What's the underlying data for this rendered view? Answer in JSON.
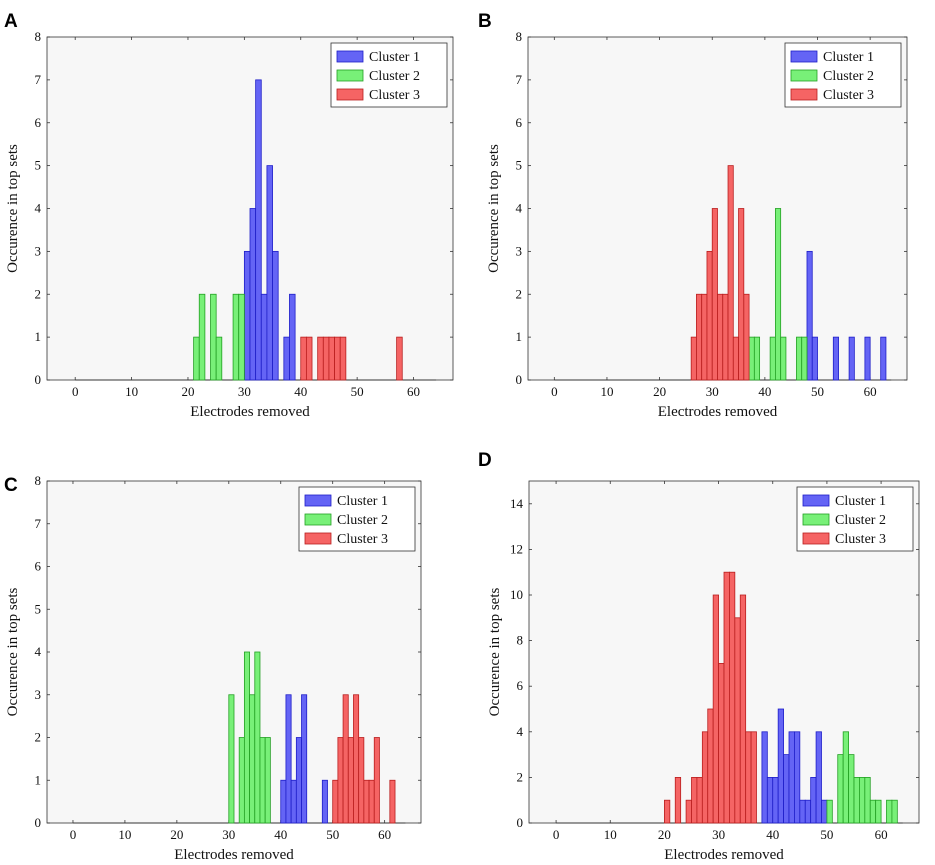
{
  "colors": {
    "plot_bg": "#f7f7f7",
    "Cluster 1": {
      "fill": "#6464f5",
      "stroke": "#1e1ec8"
    },
    "Cluster 2": {
      "fill": "#78f078",
      "stroke": "#23a023"
    },
    "Cluster 3": {
      "fill": "#f56464",
      "stroke": "#b91e1e"
    }
  },
  "chart_data": [
    {
      "panel": "A",
      "type": "bar",
      "xlabel": "Electrodes removed",
      "ylabel": "Occurence in top sets",
      "xlim": [
        -5,
        67
      ],
      "ylim": [
        0,
        8
      ],
      "xticks": [
        0,
        10,
        20,
        30,
        40,
        50,
        60
      ],
      "yticks": [
        0,
        1,
        2,
        3,
        4,
        5,
        6,
        7,
        8
      ],
      "legend_position": "top-right",
      "series": [
        {
          "name": "Cluster 1",
          "points": [
            [
              31,
              3
            ],
            [
              32,
              4
            ],
            [
              33,
              7
            ],
            [
              34,
              2
            ],
            [
              35,
              5
            ],
            [
              36,
              3
            ],
            [
              38,
              1
            ],
            [
              39,
              2
            ]
          ]
        },
        {
          "name": "Cluster 2",
          "points": [
            [
              22,
              1
            ],
            [
              23,
              2
            ],
            [
              25,
              2
            ],
            [
              26,
              1
            ],
            [
              29,
              2
            ],
            [
              30,
              2
            ]
          ]
        },
        {
          "name": "Cluster 3",
          "points": [
            [
              41,
              1
            ],
            [
              42,
              1
            ],
            [
              44,
              1
            ],
            [
              45,
              1
            ],
            [
              46,
              1
            ],
            [
              47,
              1
            ],
            [
              48,
              1
            ],
            [
              58,
              1
            ]
          ]
        }
      ]
    },
    {
      "panel": "B",
      "type": "bar",
      "xlabel": "Electrodes removed",
      "ylabel": "Occurence in top sets",
      "xlim": [
        -5,
        67
      ],
      "ylim": [
        0,
        8
      ],
      "xticks": [
        0,
        10,
        20,
        30,
        40,
        50,
        60
      ],
      "yticks": [
        0,
        1,
        2,
        3,
        4,
        5,
        6,
        7,
        8
      ],
      "legend_position": "top-right",
      "series": [
        {
          "name": "Cluster 1",
          "points": [
            [
              49,
              3
            ],
            [
              50,
              1
            ],
            [
              54,
              1
            ],
            [
              57,
              1
            ],
            [
              60,
              1
            ],
            [
              63,
              1
            ]
          ]
        },
        {
          "name": "Cluster 2",
          "points": [
            [
              38,
              1
            ],
            [
              39,
              1
            ],
            [
              42,
              1
            ],
            [
              43,
              4
            ],
            [
              44,
              1
            ],
            [
              47,
              1
            ],
            [
              48,
              1
            ]
          ]
        },
        {
          "name": "Cluster 3",
          "points": [
            [
              27,
              1
            ],
            [
              28,
              2
            ],
            [
              29,
              2
            ],
            [
              30,
              3
            ],
            [
              31,
              4
            ],
            [
              32,
              2
            ],
            [
              33,
              2
            ],
            [
              34,
              5
            ],
            [
              35,
              1
            ],
            [
              36,
              4
            ],
            [
              37,
              2
            ]
          ]
        }
      ]
    },
    {
      "panel": "C",
      "type": "bar",
      "xlabel": "Electrodes removed",
      "ylabel": "Occurence in top sets",
      "xlim": [
        -5,
        67
      ],
      "ylim": [
        0,
        8
      ],
      "xticks": [
        0,
        10,
        20,
        30,
        40,
        50,
        60
      ],
      "yticks": [
        0,
        1,
        2,
        3,
        4,
        5,
        6,
        7,
        8
      ],
      "legend_position": "top-right",
      "series": [
        {
          "name": "Cluster 1",
          "points": [
            [
              41,
              1
            ],
            [
              42,
              3
            ],
            [
              43,
              1
            ],
            [
              44,
              2
            ],
            [
              45,
              3
            ],
            [
              49,
              1
            ]
          ]
        },
        {
          "name": "Cluster 2",
          "points": [
            [
              31,
              3
            ],
            [
              33,
              2
            ],
            [
              34,
              4
            ],
            [
              35,
              3
            ],
            [
              36,
              4
            ],
            [
              37,
              2
            ],
            [
              38,
              2
            ]
          ]
        },
        {
          "name": "Cluster 3",
          "points": [
            [
              51,
              1
            ],
            [
              52,
              2
            ],
            [
              53,
              3
            ],
            [
              54,
              2
            ],
            [
              55,
              3
            ],
            [
              56,
              2
            ],
            [
              57,
              1
            ],
            [
              58,
              1
            ],
            [
              59,
              2
            ],
            [
              62,
              1
            ]
          ]
        }
      ]
    },
    {
      "panel": "D",
      "type": "bar",
      "xlabel": "Electrodes removed",
      "ylabel": "Occurence in top sets",
      "xlim": [
        -5,
        67
      ],
      "ylim": [
        0,
        15
      ],
      "xticks": [
        0,
        10,
        20,
        30,
        40,
        50,
        60
      ],
      "yticks": [
        0,
        2,
        4,
        6,
        8,
        10,
        12,
        14
      ],
      "legend_position": "top-right",
      "series": [
        {
          "name": "Cluster 1",
          "points": [
            [
              39,
              4
            ],
            [
              40,
              2
            ],
            [
              41,
              2
            ],
            [
              42,
              5
            ],
            [
              43,
              3
            ],
            [
              44,
              4
            ],
            [
              45,
              4
            ],
            [
              46,
              1
            ],
            [
              47,
              1
            ],
            [
              48,
              2
            ],
            [
              49,
              4
            ],
            [
              50,
              1
            ]
          ]
        },
        {
          "name": "Cluster 2",
          "points": [
            [
              51,
              1
            ],
            [
              53,
              3
            ],
            [
              54,
              4
            ],
            [
              55,
              3
            ],
            [
              56,
              2
            ],
            [
              57,
              2
            ],
            [
              58,
              2
            ],
            [
              59,
              1
            ],
            [
              60,
              1
            ],
            [
              62,
              1
            ],
            [
              63,
              1
            ]
          ]
        },
        {
          "name": "Cluster 3",
          "points": [
            [
              21,
              1
            ],
            [
              23,
              2
            ],
            [
              25,
              1
            ],
            [
              26,
              2
            ],
            [
              27,
              2
            ],
            [
              28,
              4
            ],
            [
              29,
              5
            ],
            [
              30,
              10
            ],
            [
              31,
              7
            ],
            [
              32,
              11
            ],
            [
              33,
              11
            ],
            [
              34,
              9
            ],
            [
              35,
              10
            ],
            [
              36,
              4
            ],
            [
              37,
              4
            ]
          ]
        }
      ]
    }
  ]
}
